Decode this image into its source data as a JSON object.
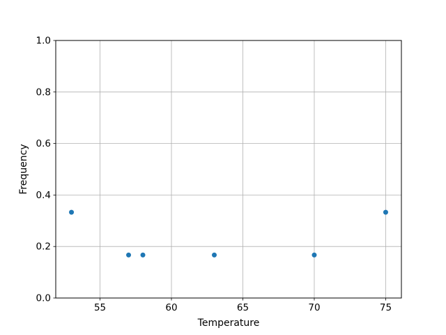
{
  "figure": {
    "background": "#ffffff"
  },
  "chart_data": {
    "type": "scatter",
    "title": "",
    "xlabel": "Temperature",
    "ylabel": "Frequency",
    "x": [
      53,
      57,
      58,
      63,
      70,
      75
    ],
    "y": [
      0.333,
      0.167,
      0.167,
      0.167,
      0.167,
      0.333
    ],
    "points": [
      {
        "x": 53,
        "y": 0.333
      },
      {
        "x": 57,
        "y": 0.167
      },
      {
        "x": 58,
        "y": 0.167
      },
      {
        "x": 63,
        "y": 0.167
      },
      {
        "x": 70,
        "y": 0.167
      },
      {
        "x": 75,
        "y": 0.333
      }
    ],
    "xlim": [
      51.9,
      76.1
    ],
    "ylim": [
      0.0,
      1.0
    ],
    "xticks": [
      55,
      60,
      65,
      70,
      75
    ],
    "yticks": [
      0.0,
      0.2,
      0.4,
      0.6,
      0.8,
      1.0
    ],
    "xtick_labels": [
      "55",
      "60",
      "65",
      "70",
      "75"
    ],
    "ytick_labels": [
      "0.0",
      "0.2",
      "0.4",
      "0.6",
      "0.8",
      "1.0"
    ],
    "grid": true,
    "legend_position": "none",
    "marker_color": "#1f77b4",
    "grid_color": "#b0b0b0",
    "spine_color": "#000000",
    "tick_color": "#000000",
    "tick_label_color": "#000000"
  }
}
